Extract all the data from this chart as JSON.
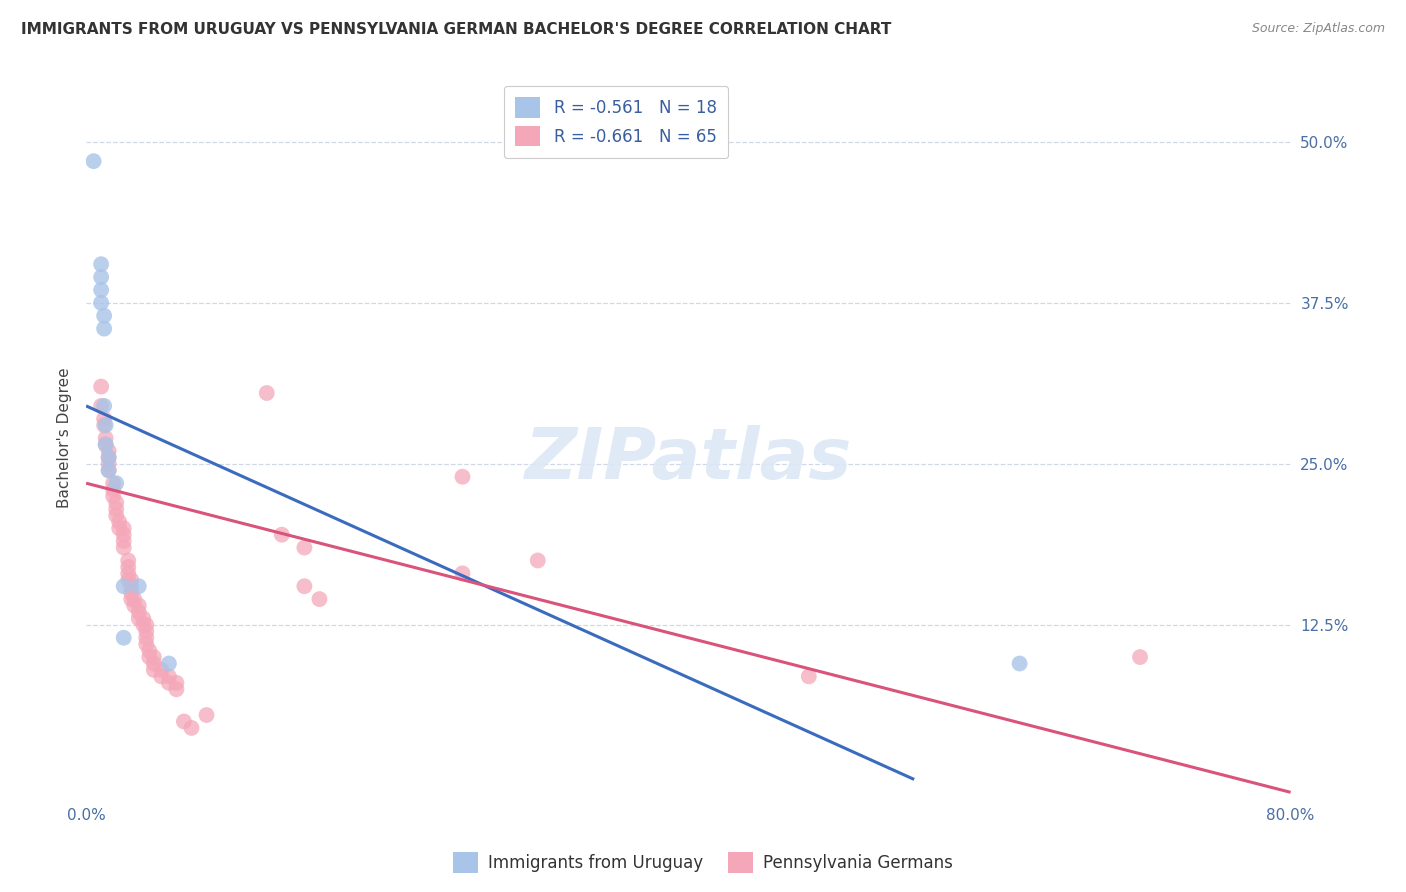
{
  "title": "IMMIGRANTS FROM URUGUAY VS PENNSYLVANIA GERMAN BACHELOR'S DEGREE CORRELATION CHART",
  "source": "Source: ZipAtlas.com",
  "ylabel": "Bachelor's Degree",
  "xlim": [
    0.0,
    0.8
  ],
  "ylim": [
    -0.01,
    0.55
  ],
  "blue_color": "#A8C4E8",
  "pink_color": "#F4A7B9",
  "blue_scatter": [
    [
      0.005,
      0.485
    ],
    [
      0.01,
      0.405
    ],
    [
      0.01,
      0.395
    ],
    [
      0.01,
      0.385
    ],
    [
      0.01,
      0.375
    ],
    [
      0.012,
      0.365
    ],
    [
      0.012,
      0.355
    ],
    [
      0.012,
      0.295
    ],
    [
      0.013,
      0.28
    ],
    [
      0.013,
      0.265
    ],
    [
      0.015,
      0.255
    ],
    [
      0.015,
      0.245
    ],
    [
      0.02,
      0.235
    ],
    [
      0.025,
      0.155
    ],
    [
      0.025,
      0.115
    ],
    [
      0.035,
      0.155
    ],
    [
      0.055,
      0.095
    ],
    [
      0.62,
      0.095
    ]
  ],
  "pink_scatter": [
    [
      0.01,
      0.31
    ],
    [
      0.01,
      0.295
    ],
    [
      0.012,
      0.285
    ],
    [
      0.012,
      0.28
    ],
    [
      0.013,
      0.27
    ],
    [
      0.013,
      0.265
    ],
    [
      0.015,
      0.26
    ],
    [
      0.015,
      0.255
    ],
    [
      0.015,
      0.25
    ],
    [
      0.015,
      0.245
    ],
    [
      0.018,
      0.235
    ],
    [
      0.018,
      0.23
    ],
    [
      0.018,
      0.225
    ],
    [
      0.02,
      0.22
    ],
    [
      0.02,
      0.215
    ],
    [
      0.02,
      0.21
    ],
    [
      0.022,
      0.205
    ],
    [
      0.022,
      0.2
    ],
    [
      0.025,
      0.2
    ],
    [
      0.025,
      0.195
    ],
    [
      0.025,
      0.19
    ],
    [
      0.025,
      0.185
    ],
    [
      0.028,
      0.175
    ],
    [
      0.028,
      0.17
    ],
    [
      0.028,
      0.165
    ],
    [
      0.028,
      0.16
    ],
    [
      0.03,
      0.16
    ],
    [
      0.03,
      0.155
    ],
    [
      0.03,
      0.15
    ],
    [
      0.03,
      0.145
    ],
    [
      0.032,
      0.145
    ],
    [
      0.032,
      0.14
    ],
    [
      0.035,
      0.14
    ],
    [
      0.035,
      0.135
    ],
    [
      0.035,
      0.13
    ],
    [
      0.038,
      0.13
    ],
    [
      0.038,
      0.125
    ],
    [
      0.04,
      0.125
    ],
    [
      0.04,
      0.12
    ],
    [
      0.04,
      0.115
    ],
    [
      0.04,
      0.11
    ],
    [
      0.042,
      0.105
    ],
    [
      0.042,
      0.1
    ],
    [
      0.045,
      0.1
    ],
    [
      0.045,
      0.095
    ],
    [
      0.045,
      0.09
    ],
    [
      0.05,
      0.09
    ],
    [
      0.05,
      0.085
    ],
    [
      0.055,
      0.085
    ],
    [
      0.055,
      0.08
    ],
    [
      0.06,
      0.08
    ],
    [
      0.06,
      0.075
    ],
    [
      0.065,
      0.05
    ],
    [
      0.07,
      0.045
    ],
    [
      0.08,
      0.055
    ],
    [
      0.12,
      0.305
    ],
    [
      0.13,
      0.195
    ],
    [
      0.145,
      0.185
    ],
    [
      0.145,
      0.155
    ],
    [
      0.155,
      0.145
    ],
    [
      0.25,
      0.24
    ],
    [
      0.25,
      0.165
    ],
    [
      0.3,
      0.175
    ],
    [
      0.48,
      0.085
    ],
    [
      0.7,
      0.1
    ]
  ],
  "blue_line_x": [
    0.0,
    0.55
  ],
  "blue_line_y": [
    0.295,
    0.005
  ],
  "pink_line_x": [
    0.0,
    0.8
  ],
  "pink_line_y": [
    0.235,
    -0.005
  ],
  "background_color": "#ffffff",
  "grid_color": "#d0d8e8",
  "title_color": "#333333",
  "tick_label_color": "#4a6fa5",
  "watermark_text": "ZIPatlas"
}
